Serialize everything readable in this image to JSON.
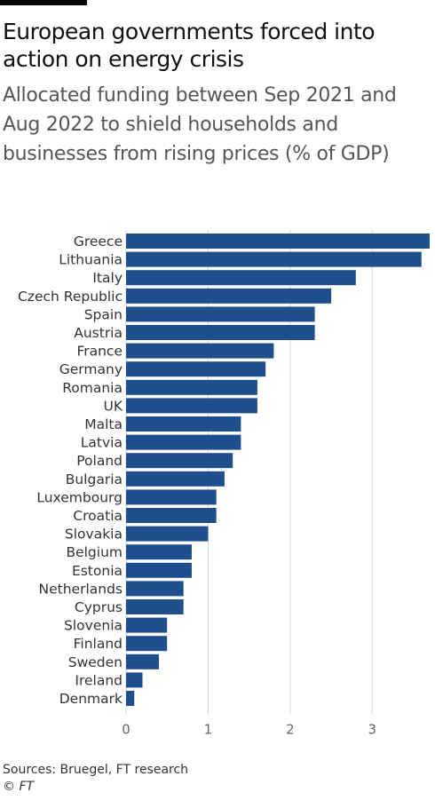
{
  "header": {
    "title": "European governments forced into action on energy crisis",
    "subtitle": "Allocated funding between Sep 2021 and Aug 2022 to shield households and businesses from rising prices (% of GDP)"
  },
  "footer": {
    "source": "Sources: Bruegel, FT research",
    "credit": "© FT"
  },
  "colors": {
    "bar": "#1f4e8c",
    "gridline": "#d9d9d9",
    "axis_text": "#666666",
    "label_text": "#333333"
  },
  "chart_data": {
    "type": "bar",
    "orientation": "horizontal",
    "categories": [
      "Greece",
      "Lithuania",
      "Italy",
      "Czech Republic",
      "Spain",
      "Austria",
      "France",
      "Germany",
      "Romania",
      "UK",
      "Malta",
      "Latvia",
      "Poland",
      "Bulgaria",
      "Luxembourg",
      "Croatia",
      "Slovakia",
      "Belgium",
      "Estonia",
      "Netherlands",
      "Cyprus",
      "Slovenia",
      "Finland",
      "Sweden",
      "Ireland",
      "Denmark"
    ],
    "values": [
      3.7,
      3.6,
      2.8,
      2.5,
      2.3,
      2.3,
      1.8,
      1.7,
      1.6,
      1.6,
      1.4,
      1.4,
      1.3,
      1.2,
      1.1,
      1.1,
      1.0,
      0.8,
      0.8,
      0.7,
      0.7,
      0.5,
      0.5,
      0.4,
      0.2,
      0.1
    ],
    "xlim": [
      0,
      3.7
    ],
    "xticks": [
      0,
      1,
      2,
      3
    ],
    "grid": true,
    "xlabel": "",
    "ylabel": ""
  }
}
